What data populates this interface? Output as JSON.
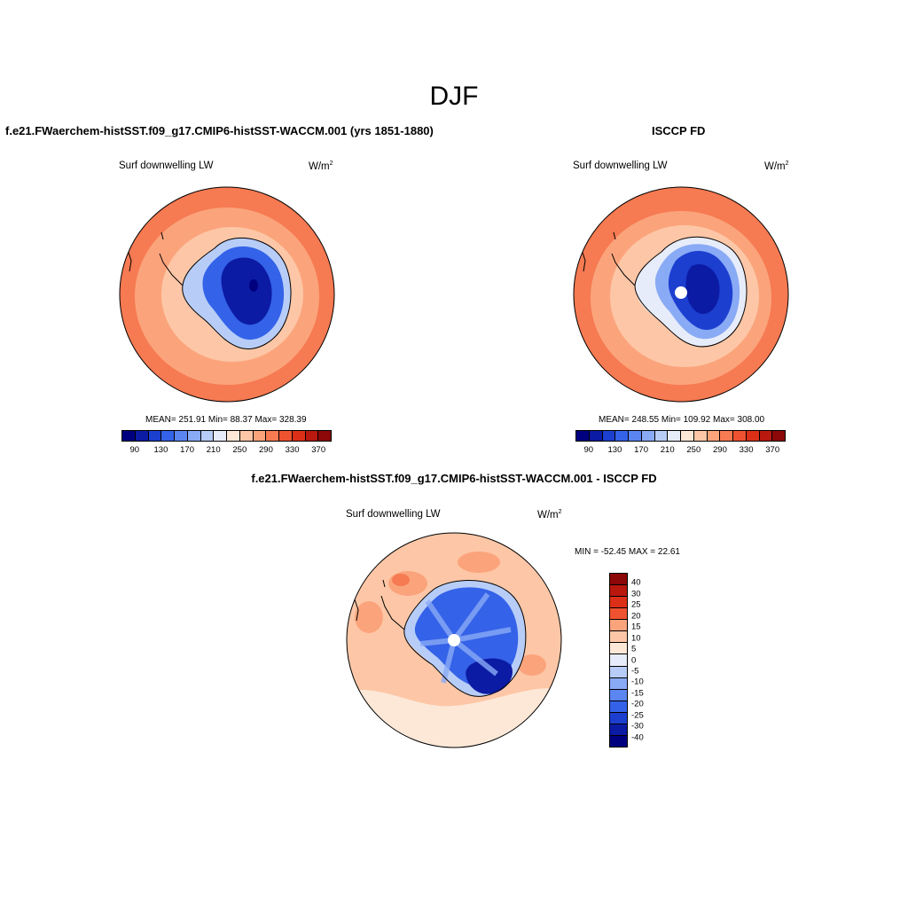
{
  "figure": {
    "title": "DJF"
  },
  "colors": {
    "abs_scale": [
      "#00007f",
      "#0c1ba4",
      "#1c3fd0",
      "#3462e8",
      "#5b85f0",
      "#89aaf5",
      "#b7cdf8",
      "#e7ecfa",
      "#fde8d8",
      "#fdc7a7",
      "#fba47c",
      "#f67a52",
      "#ee5230",
      "#dc2f18",
      "#b8180e",
      "#8c0707"
    ],
    "diff_scale": [
      "#8c0707",
      "#b8180e",
      "#dc2f18",
      "#ee5230",
      "#fba47c",
      "#fdc7a7",
      "#fde8d8",
      "#e7ecfa",
      "#b7cdf8",
      "#89aaf5",
      "#5b85f0",
      "#3462e8",
      "#1c3fd0",
      "#0c1ba4",
      "#00007f"
    ]
  },
  "chart_data": [
    {
      "type": "heatmap",
      "projection": "south-polar-stereographic",
      "title": "f.e21.FWaerchem-histSST.f09_g17.CMIP6-histSST-WACCM.001 (yrs 1851-1880)",
      "variable": "Surf downwelling LW",
      "units": "W/m",
      "units_exp": "2",
      "mean_label": "MEAN=",
      "min_label": "Min=",
      "max_label": "Max=",
      "mean": "251.91",
      "min": "88.37",
      "max": "328.39",
      "colorbar_ticks": [
        "90",
        "130",
        "170",
        "210",
        "250",
        "290",
        "330",
        "370"
      ],
      "colorbar_levels": [
        90,
        110,
        130,
        150,
        170,
        190,
        210,
        230,
        250,
        270,
        290,
        310,
        330,
        350,
        370
      ],
      "legend_position": "bottom"
    },
    {
      "type": "heatmap",
      "projection": "south-polar-stereographic",
      "title": "ISCCP FD",
      "variable": "Surf downwelling LW",
      "units": "W/m",
      "units_exp": "2",
      "mean_label": "MEAN=",
      "min_label": "Min=",
      "max_label": "Max=",
      "mean": "248.55",
      "min": "109.92",
      "max": "308.00",
      "colorbar_ticks": [
        "90",
        "130",
        "170",
        "210",
        "250",
        "290",
        "330",
        "370"
      ],
      "colorbar_levels": [
        90,
        110,
        130,
        150,
        170,
        190,
        210,
        230,
        250,
        270,
        290,
        310,
        330,
        350,
        370
      ],
      "legend_position": "bottom"
    },
    {
      "type": "heatmap",
      "projection": "south-polar-stereographic",
      "title": "f.e21.FWaerchem-histSST.f09_g17.CMIP6-histSST-WACCM.001 - ISCCP FD",
      "variable": "Surf downwelling LW",
      "units": "W/m",
      "units_exp": "2",
      "minmax_text": "MIN = -52.45 MAX =  22.61",
      "min": "-52.45",
      "max": "22.61",
      "colorbar_ticks": [
        "40",
        "30",
        "25",
        "20",
        "15",
        "10",
        "5",
        "0",
        "-5",
        "-10",
        "-15",
        "-20",
        "-25",
        "-30",
        "-40"
      ],
      "colorbar_levels": [
        40,
        30,
        25,
        20,
        15,
        10,
        5,
        0,
        -5,
        -10,
        -15,
        -20,
        -25,
        -30,
        -40
      ],
      "legend_position": "right"
    }
  ]
}
